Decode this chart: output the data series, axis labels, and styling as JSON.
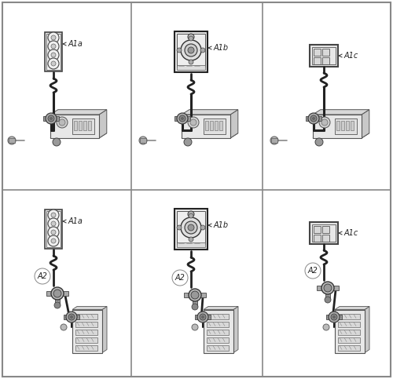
{
  "background_color": "#ffffff",
  "border_color": "#555555",
  "panel_dividers": {
    "col1": 0.333,
    "col2": 0.667,
    "row1": 0.5
  },
  "panels": [
    {
      "id": "top_A1a",
      "col": 0,
      "row": 0,
      "label": "A1a",
      "type": "A1a"
    },
    {
      "id": "top_A1b",
      "col": 1,
      "row": 0,
      "label": "A1b",
      "type": "A1b"
    },
    {
      "id": "top_A1c",
      "col": 2,
      "row": 0,
      "label": "A1c",
      "type": "A1c"
    },
    {
      "id": "bot_A1a",
      "col": 0,
      "row": 1,
      "label": "A1a",
      "type": "A1a"
    },
    {
      "id": "bot_A1b",
      "col": 1,
      "row": 1,
      "label": "A1b",
      "type": "A1b"
    },
    {
      "id": "bot_A1c",
      "col": 2,
      "row": 1,
      "label": "A1c",
      "type": "A1c"
    }
  ],
  "line_color": "#222222",
  "light_gray": "#e8e8e8",
  "mid_gray": "#cccccc",
  "dark_gray": "#555555",
  "label_fontsize": 7,
  "wavy_amplitude": 0.006,
  "wavy_cycles": 2
}
